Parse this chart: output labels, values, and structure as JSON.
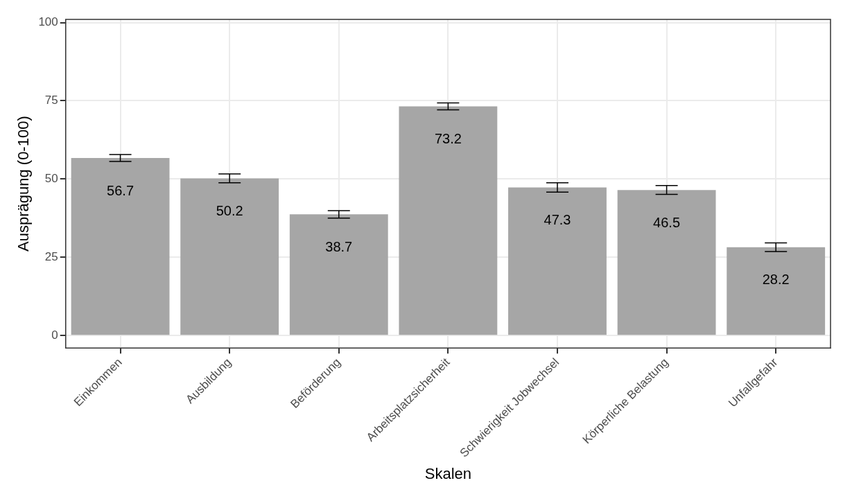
{
  "chart_data": {
    "type": "bar",
    "xlabel": "Skalen",
    "ylabel": "Ausprägung (0-100)",
    "categories": [
      "Einkommen",
      "Ausbildung",
      "Beförderung",
      "Arbeitsplatzsicherheit",
      "Schwierigkeit Jobwechsel",
      "Körperliche Belastung",
      "Unfallgefahr"
    ],
    "values": [
      56.7,
      50.2,
      38.7,
      73.2,
      47.3,
      46.5,
      28.2
    ],
    "errors": [
      1.1,
      1.4,
      1.2,
      1.1,
      1.5,
      1.4,
      1.4
    ],
    "color": "#a6a6a6",
    "ylim": [
      -4,
      101
    ],
    "yticks": [
      0,
      25,
      50,
      75,
      100
    ],
    "grid": true,
    "data_labels": true,
    "legend": false
  }
}
